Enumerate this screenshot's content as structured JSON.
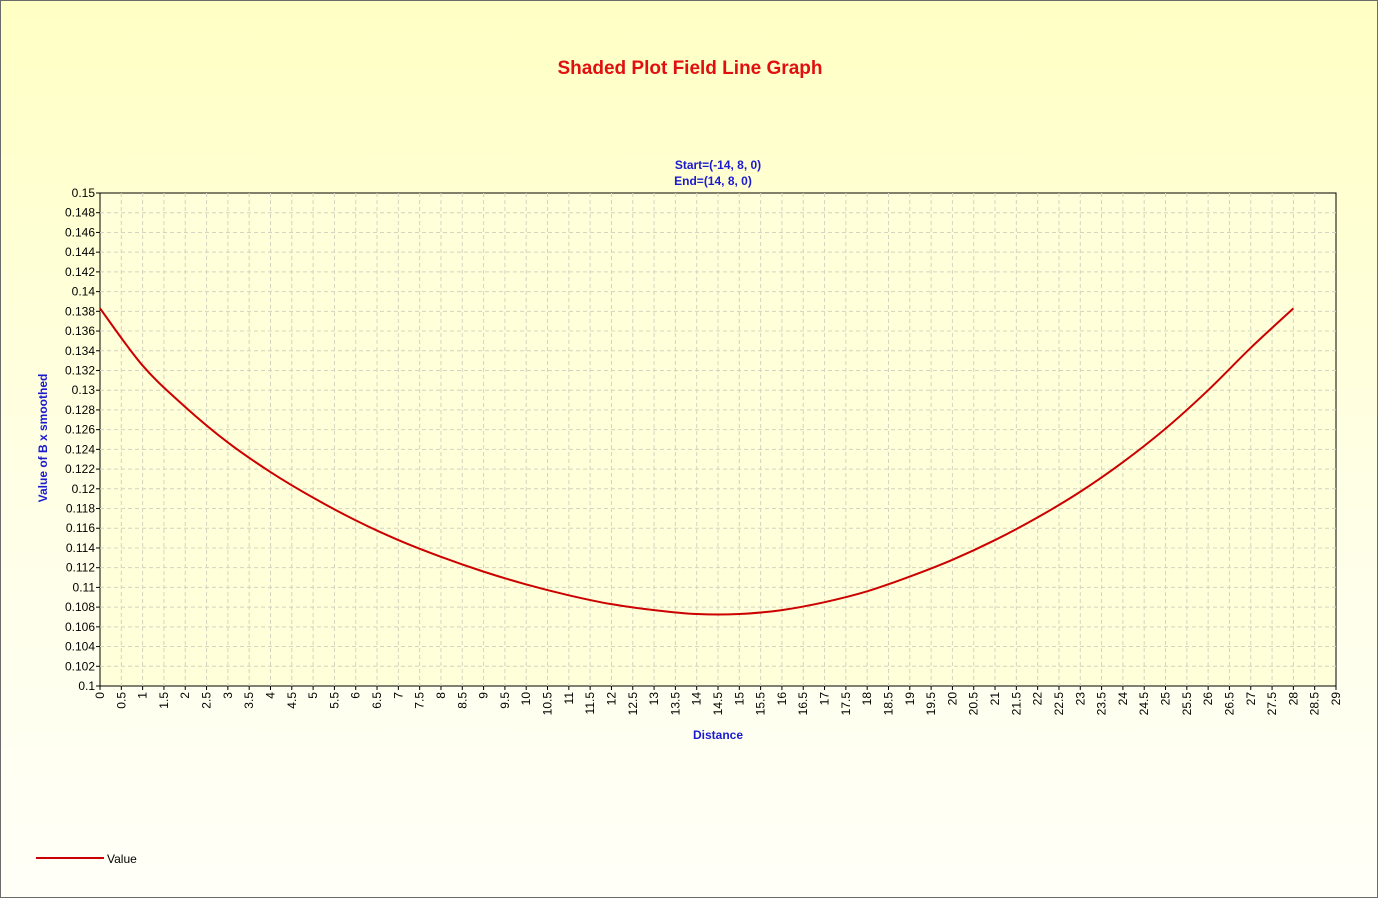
{
  "chart_data": {
    "type": "line",
    "title": "Shaded Plot Field Line Graph",
    "subtitle_lines": [
      "Start=(-14, 8, 0)",
      "End=(14, 8, 0)"
    ],
    "xlabel": "Distance",
    "ylabel": "Value of B x smoothed",
    "xlim": [
      0,
      29
    ],
    "ylim": [
      0.1,
      0.15
    ],
    "x_tick_step": 0.5,
    "y_tick_step": 0.002,
    "x_tick_labels": [
      "0",
      "0.5",
      "1",
      "1.5",
      "2",
      "2.5",
      "3",
      "3.5",
      "4",
      "4.5",
      "5",
      "5.5",
      "6",
      "6.5",
      "7",
      "7.5",
      "8",
      "8.5",
      "9",
      "9.5",
      "10",
      "10.5",
      "11",
      "11.5",
      "12",
      "12.5",
      "13",
      "13.5",
      "14",
      "14.5",
      "15",
      "15.5",
      "16",
      "16.5",
      "17",
      "17.5",
      "18",
      "18.5",
      "19",
      "19.5",
      "20",
      "20.5",
      "21",
      "21.5",
      "22",
      "22.5",
      "23",
      "23.5",
      "24",
      "24.5",
      "25",
      "25.5",
      "26",
      "26.5",
      "27",
      "27.5",
      "28",
      "28.5",
      "29"
    ],
    "y_tick_labels": [
      "0.1",
      "0.102",
      "0.104",
      "0.106",
      "0.108",
      "0.11",
      "0.112",
      "0.114",
      "0.116",
      "0.118",
      "0.12",
      "0.122",
      "0.124",
      "0.126",
      "0.128",
      "0.13",
      "0.132",
      "0.134",
      "0.136",
      "0.138",
      "0.14",
      "0.142",
      "0.144",
      "0.146",
      "0.148",
      "0.15"
    ],
    "grid": true,
    "legend_position": "bottom-left",
    "series": [
      {
        "name": "Value",
        "color": "#cc0000",
        "x": [
          0,
          1,
          2,
          3,
          4,
          5,
          6,
          7,
          8,
          9,
          10,
          11,
          12,
          13,
          14,
          15,
          16,
          17,
          18,
          19,
          20,
          21,
          22,
          23,
          24,
          25,
          26,
          27,
          28
        ],
        "y": [
          0.1383,
          0.1325,
          0.1283,
          0.1247,
          0.1217,
          0.1191,
          0.1168,
          0.1148,
          0.1131,
          0.1116,
          0.1103,
          0.1092,
          0.1083,
          0.1077,
          0.1073,
          0.1073,
          0.1077,
          0.1085,
          0.1096,
          0.1111,
          0.1128,
          0.1148,
          0.1171,
          0.1197,
          0.1227,
          0.1261,
          0.13,
          0.1343,
          0.1383
        ]
      }
    ]
  },
  "colors": {
    "title": "#e01010",
    "labels": "#1a1ad0",
    "line": "#cc0000",
    "grid": "#d4d4c0"
  }
}
